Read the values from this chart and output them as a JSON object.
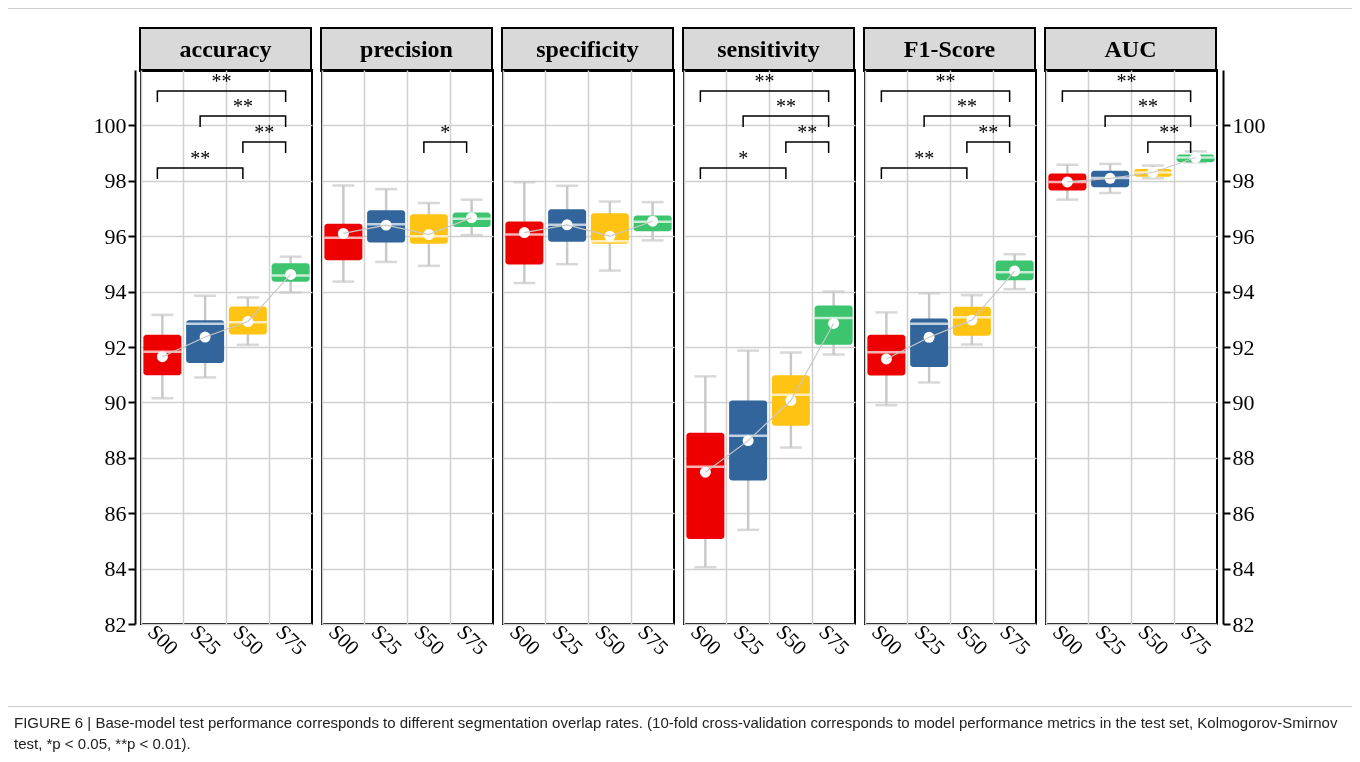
{
  "chart_data": [
    {
      "type": "box",
      "title": "accuracy",
      "categories": [
        "S00",
        "S25",
        "S50",
        "S75"
      ],
      "ylim": [
        82,
        102
      ],
      "yticks": [
        82,
        84,
        86,
        88,
        90,
        92,
        94,
        96,
        98,
        100
      ],
      "grid": true,
      "tick_labels": "xy",
      "annotations": [
        "**",
        "**",
        "**",
        "**"
      ],
      "series": [
        {
          "type": "box",
          "colors": [
            "#ee0000",
            "#31659c",
            "#ffc314",
            "#3cc46e"
          ],
          "boxes": [
            {
              "low": 90.15,
              "q1": 90.98,
              "median": 91.83,
              "q3": 92.44,
              "high": 93.16,
              "mean": 91.65
            },
            {
              "low": 90.9,
              "q1": 91.42,
              "median": 92.84,
              "q3": 92.97,
              "high": 93.85,
              "mean": 92.36
            },
            {
              "low": 92.08,
              "q1": 92.45,
              "median": 92.89,
              "q3": 93.46,
              "high": 93.79,
              "mean": 92.92
            },
            {
              "low": 93.97,
              "q1": 94.36,
              "median": 94.58,
              "q3": 95.02,
              "high": 95.26,
              "mean": 94.62
            }
          ]
        },
        {
          "type": "line",
          "color": "#c8c8c8",
          "values": [
            91.65,
            92.36,
            92.92,
            94.62
          ]
        }
      ]
    },
    {
      "type": "box",
      "title": "precision",
      "categories": [
        "S00",
        "S25",
        "S50",
        "S75"
      ],
      "ylim": [
        82,
        102
      ],
      "yticks": [
        82,
        84,
        86,
        88,
        90,
        92,
        94,
        96,
        98,
        100
      ],
      "grid": true,
      "tick_labels": "x",
      "annotations": [
        "*"
      ],
      "series": [
        {
          "type": "box",
          "colors": [
            "#ee0000",
            "#31659c",
            "#ffc314",
            "#3cc46e"
          ],
          "boxes": [
            {
              "low": 94.36,
              "q1": 95.13,
              "median": 95.94,
              "q3": 96.45,
              "high": 97.83,
              "mean": 96.1
            },
            {
              "low": 95.07,
              "q1": 95.77,
              "median": 96.43,
              "q3": 96.94,
              "high": 97.7,
              "mean": 96.4
            },
            {
              "low": 94.93,
              "q1": 95.73,
              "median": 96.0,
              "q3": 96.79,
              "high": 97.2,
              "mean": 96.06
            },
            {
              "low": 96.04,
              "q1": 96.33,
              "median": 96.63,
              "q3": 96.86,
              "high": 97.32,
              "mean": 96.67
            }
          ]
        },
        {
          "type": "line",
          "color": "#c8c8c8",
          "values": [
            96.1,
            96.4,
            96.06,
            96.67
          ]
        }
      ]
    },
    {
      "type": "box",
      "title": "specificity",
      "categories": [
        "S00",
        "S25",
        "S50",
        "S75"
      ],
      "ylim": [
        82,
        102
      ],
      "yticks": [
        82,
        84,
        86,
        88,
        90,
        92,
        94,
        96,
        98,
        100
      ],
      "grid": true,
      "tick_labels": "x",
      "series": [
        {
          "type": "box",
          "colors": [
            "#ee0000",
            "#31659c",
            "#ffc314",
            "#3cc46e"
          ],
          "boxes": [
            {
              "low": 94.31,
              "q1": 94.98,
              "median": 96.06,
              "q3": 96.53,
              "high": 97.95,
              "mean": 96.13
            },
            {
              "low": 94.99,
              "q1": 95.8,
              "median": 96.41,
              "q3": 96.97,
              "high": 97.82,
              "mean": 96.41
            },
            {
              "low": 94.76,
              "q1": 95.73,
              "median": 95.82,
              "q3": 96.83,
              "high": 97.25,
              "mean": 96.0
            },
            {
              "low": 95.85,
              "q1": 96.18,
              "median": 96.52,
              "q3": 96.75,
              "high": 97.23,
              "mean": 96.54
            }
          ]
        },
        {
          "type": "line",
          "color": "#c8c8c8",
          "values": [
            96.13,
            96.41,
            96.0,
            96.54
          ]
        }
      ]
    },
    {
      "type": "box",
      "title": "sensitivity",
      "categories": [
        "S00",
        "S25",
        "S50",
        "S75"
      ],
      "ylim": [
        82,
        102
      ],
      "yticks": [
        82,
        84,
        86,
        88,
        90,
        92,
        94,
        96,
        98,
        100
      ],
      "grid": true,
      "tick_labels": "x",
      "annotations": [
        "**",
        "**",
        "**",
        "*"
      ],
      "series": [
        {
          "type": "box",
          "colors": [
            "#ee0000",
            "#31659c",
            "#ffc314",
            "#3cc46e"
          ],
          "boxes": [
            {
              "low": 84.05,
              "q1": 85.07,
              "median": 87.68,
              "q3": 88.9,
              "high": 90.94,
              "mean": 87.48
            },
            {
              "low": 85.4,
              "q1": 87.18,
              "median": 88.8,
              "q3": 90.07,
              "high": 91.87,
              "mean": 88.62
            },
            {
              "low": 88.37,
              "q1": 89.16,
              "median": 90.28,
              "q3": 90.98,
              "high": 91.8,
              "mean": 90.07
            },
            {
              "low": 91.73,
              "q1": 92.08,
              "median": 93.05,
              "q3": 93.5,
              "high": 94.0,
              "mean": 92.85
            }
          ]
        },
        {
          "type": "line",
          "color": "#c8c8c8",
          "values": [
            87.48,
            88.62,
            90.07,
            92.85
          ]
        }
      ]
    },
    {
      "type": "box",
      "title": "F1-Score",
      "categories": [
        "S00",
        "S25",
        "S50",
        "S75"
      ],
      "ylim": [
        82,
        102
      ],
      "yticks": [
        82,
        84,
        86,
        88,
        90,
        92,
        94,
        96,
        98,
        100
      ],
      "grid": true,
      "tick_labels": "x",
      "annotations": [
        "**",
        "**",
        "**",
        "**"
      ],
      "series": [
        {
          "type": "box",
          "colors": [
            "#ee0000",
            "#31659c",
            "#ffc314",
            "#3cc46e"
          ],
          "boxes": [
            {
              "low": 89.9,
              "q1": 90.97,
              "median": 91.81,
              "q3": 92.44,
              "high": 93.25,
              "mean": 91.57
            },
            {
              "low": 90.72,
              "q1": 91.28,
              "median": 92.84,
              "q3": 93.03,
              "high": 93.94,
              "mean": 92.35
            },
            {
              "low": 92.09,
              "q1": 92.41,
              "median": 93.07,
              "q3": 93.45,
              "high": 93.87,
              "mean": 92.97
            },
            {
              "low": 94.09,
              "q1": 94.41,
              "median": 94.7,
              "q3": 95.12,
              "high": 95.35,
              "mean": 94.74
            }
          ]
        },
        {
          "type": "line",
          "color": "#c8c8c8",
          "values": [
            91.57,
            92.35,
            92.97,
            94.74
          ]
        }
      ]
    },
    {
      "type": "box",
      "title": "AUC",
      "categories": [
        "S00",
        "S25",
        "S50",
        "S75"
      ],
      "ylim": [
        82,
        102
      ],
      "yticks": [
        82,
        84,
        86,
        88,
        90,
        92,
        94,
        96,
        98,
        100
      ],
      "grid": true,
      "tick_labels": "xy",
      "annotations": [
        "**",
        "**",
        "**"
      ],
      "series": [
        {
          "type": "box",
          "colors": [
            "#ee0000",
            "#31659c",
            "#ffc314",
            "#3cc46e"
          ],
          "boxes": [
            {
              "low": 97.32,
              "q1": 97.65,
              "median": 97.96,
              "q3": 98.26,
              "high": 98.58,
              "mean": 97.96
            },
            {
              "low": 97.56,
              "q1": 97.77,
              "median": 98.1,
              "q3": 98.36,
              "high": 98.61,
              "mean": 98.09
            },
            {
              "low": 98.09,
              "q1": 98.15,
              "median": 98.3,
              "q3": 98.43,
              "high": 98.55,
              "mean": 98.3
            },
            {
              "low": 98.67,
              "q1": 98.67,
              "median": 98.84,
              "q3": 98.95,
              "high": 99.06,
              "mean": 98.84
            }
          ]
        },
        {
          "type": "line",
          "color": "#c8c8c8",
          "values": [
            97.96,
            98.09,
            98.3,
            98.84
          ]
        }
      ]
    },
    {
      "type": "other",
      "annotations": [
        "FIGURE 6 | Base-model test performance corresponds to different segmentation overlap rates. (10-fold cross-validation corresponds to model performance metrics in the test set, Kolmogorov-Smirnov test, *p < 0.05, **p < 0.01)."
      ]
    }
  ]
}
